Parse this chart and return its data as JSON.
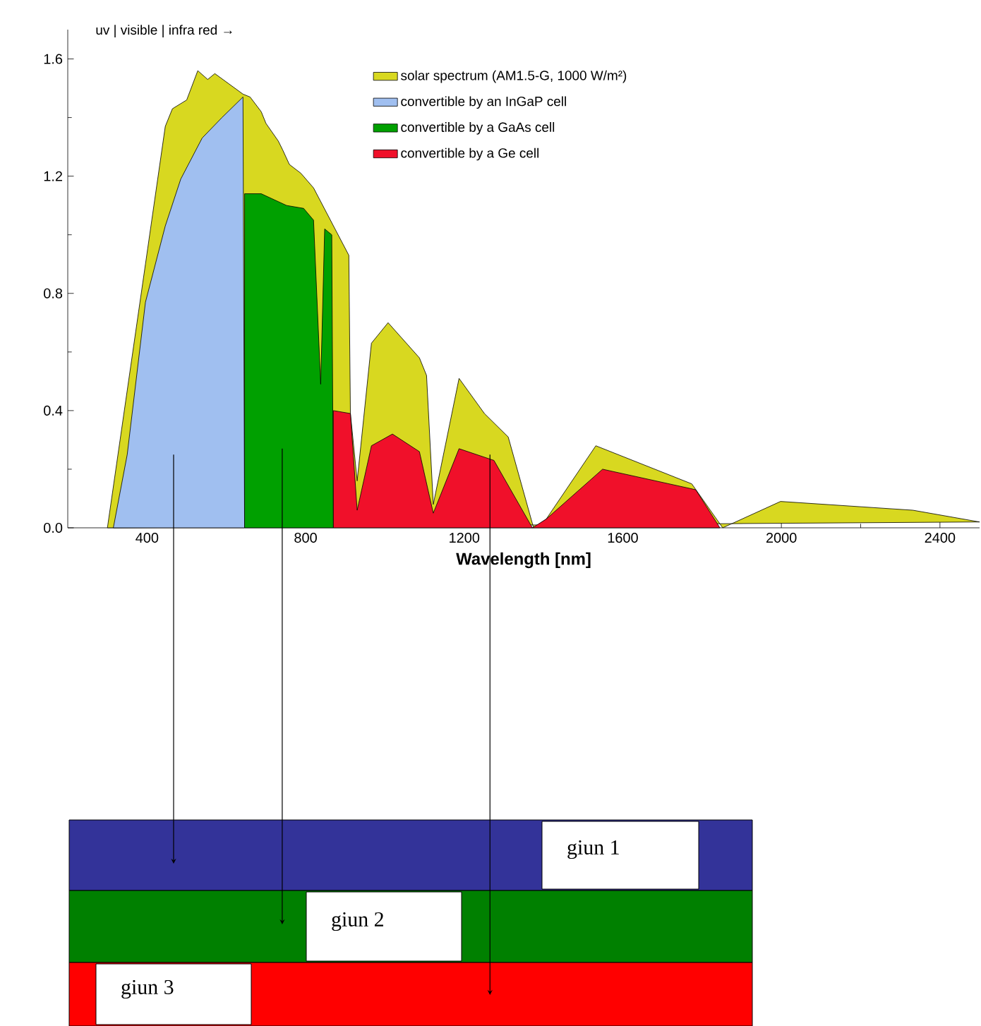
{
  "chart_data": {
    "type": "area",
    "xlabel": "Wavelength [nm]",
    "annotations": [
      "uv  |  visible  |  infra red →",
      "giun 1",
      "giun 2",
      "giun 3"
    ],
    "xlim": [
      200,
      2500
    ],
    "ylim": [
      0,
      1.7
    ],
    "xticks": [
      400,
      800,
      1200,
      1600,
      2000,
      2400
    ],
    "yticks": [
      {
        "value": 0,
        "label": "0.0"
      },
      0.4,
      0.8,
      1.2,
      1.6
    ],
    "legend": "top right",
    "series": [
      {
        "name": "solar spectrum (AM1.5-G, 1000 W/m²)",
        "color": "#d8d820",
        "x": [
          300,
          375,
          396,
          446,
          464,
          500,
          528,
          553,
          571,
          642,
          660,
          688,
          700,
          731,
          742,
          759,
          788,
          802,
          820,
          838,
          841,
          848,
          909,
          913,
          930,
          966,
          1008,
          1087,
          1105,
          1122,
          1187,
          1251,
          1311,
          1375,
          1407,
          1532,
          1774,
          1852,
          1998,
          2332,
          2500
        ],
        "values": [
          0,
          null,
          0.9,
          1.37,
          1.43,
          1.46,
          1.56,
          1.53,
          1.55,
          1.48,
          1.47,
          1.42,
          1.38,
          1.32,
          1.29,
          1.24,
          1.21,
          null,
          1.16,
          null,
          null,
          null,
          0.93,
          0.39,
          0.16,
          0.63,
          0.7,
          0.58,
          0.52,
          0.08,
          0.51,
          0.39,
          0.31,
          0,
          0.03,
          0.28,
          0.15,
          0,
          0.09,
          0.06,
          0.02
        ]
      },
      {
        "name": "convertible by an InGaP cell",
        "color": "#a0bff0",
        "x": [
          315,
          350,
          396,
          446,
          485,
          539,
          589,
          642,
          646
        ],
        "values": [
          0,
          0.25,
          0.77,
          1.03,
          1.19,
          1.33,
          1.4,
          1.47,
          0
        ]
      },
      {
        "name": "convertible by a GaAs cell",
        "color": "#00a000",
        "x": [
          646,
          646,
          688,
          752,
          795,
          820,
          838,
          848,
          866,
          870
        ],
        "values": [
          0,
          1.14,
          1.14,
          1.1,
          1.09,
          1.05,
          0.49,
          1.02,
          1.0,
          0
        ]
      },
      {
        "name": "convertible by a Ge cell",
        "color": "#f0102a",
        "x": [
          870,
          870,
          913,
          930,
          966,
          1019,
          1087,
          1122,
          1187,
          1275,
          1372,
          1407,
          1549,
          1784,
          1845
        ],
        "values": [
          0,
          0.4,
          0.39,
          0.06,
          0.28,
          0.32,
          0.26,
          0.05,
          0.27,
          0.23,
          0,
          0.03,
          0.2,
          0.13,
          0
        ]
      }
    ]
  }
}
